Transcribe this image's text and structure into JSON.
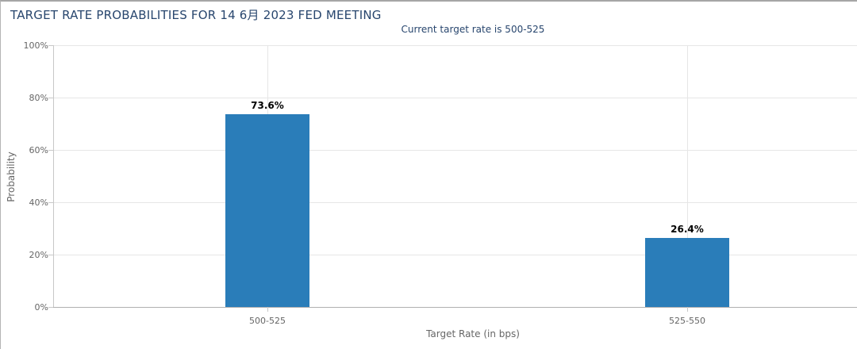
{
  "chart_data": {
    "type": "bar",
    "title": "TARGET RATE PROBABILITIES FOR 14 6月 2023 FED MEETING",
    "subtitle": "Current target rate is 500-525",
    "categories": [
      "500-525",
      "525-550"
    ],
    "values": [
      73.6,
      26.4
    ],
    "value_labels": [
      "73.6%",
      "26.4%"
    ],
    "xlabel": "Target Rate (in bps)",
    "ylabel": "Probability",
    "ylim": [
      0,
      100
    ],
    "ytick_values": [
      0,
      20,
      40,
      60,
      80,
      100
    ],
    "ytick_labels": [
      "0%",
      "20%",
      "40%",
      "60%",
      "80%",
      "100%"
    ],
    "grid": true,
    "legend": "none",
    "colors": {
      "bar": "#2A7DB9",
      "title": "#28466E",
      "subtitle": "#28466E",
      "data_label": "#000000",
      "tick_label": "#666666",
      "axis_title": "#666666",
      "gridline": "#E6E6E6",
      "y_axis_line": "#C8C8C8",
      "x_axis_line": "#B0B0B0",
      "tick_mark": "#C8C8C8",
      "panel_border": "#A6A6A6"
    }
  }
}
